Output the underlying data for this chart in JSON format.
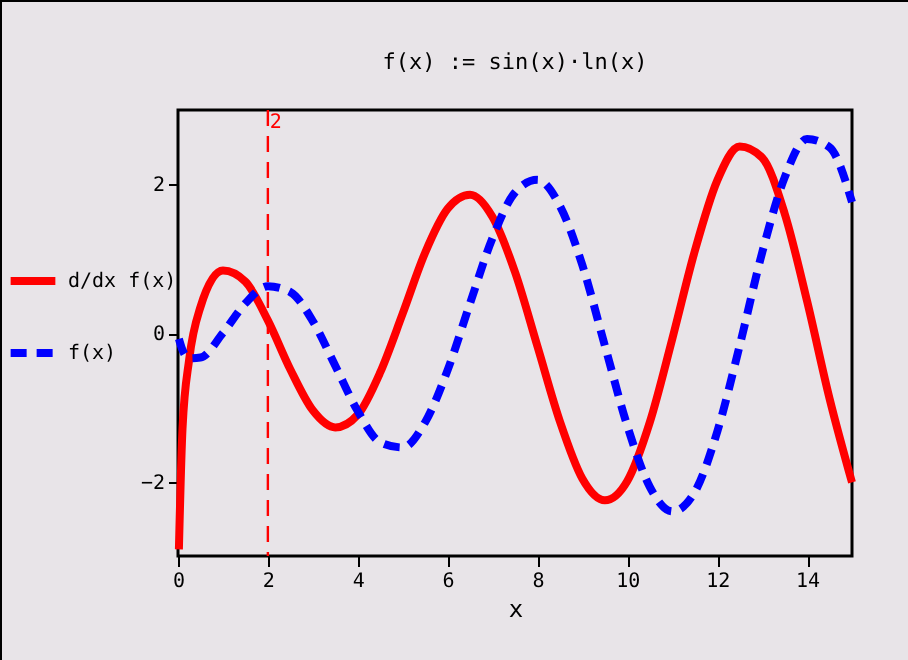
{
  "chart_data": {
    "type": "line",
    "title": "f(x) := sin(x)·ln(x)",
    "xlabel": "x",
    "x": [
      0.02,
      0.1,
      0.25,
      0.5,
      1,
      1.5,
      2,
      2.5,
      3,
      3.5,
      4,
      4.5,
      5,
      5.5,
      6,
      6.5,
      7,
      7.5,
      8,
      8.5,
      9,
      9.5,
      10,
      10.5,
      11,
      11.5,
      12,
      12.5,
      13,
      13.5,
      14,
      14.5,
      15
    ],
    "series": [
      {
        "name": "d/dx f(x)",
        "color": "#ff0000",
        "line_style": "solid",
        "values": [
          -2.91,
          -1.29,
          -0.35,
          0.35,
          0.84,
          0.69,
          0.17,
          -0.49,
          -1.04,
          -1.27,
          -1.1,
          -0.53,
          0.26,
          1.08,
          1.67,
          1.86,
          1.56,
          0.82,
          -0.18,
          -1.19,
          -1.96,
          -2.25,
          -1.99,
          -1.2,
          -0.08,
          1.1,
          2.05,
          2.51,
          2.36,
          1.61,
          0.43,
          -0.88,
          -2.01
        ]
      },
      {
        "name": "f(x)",
        "color": "#0000ff",
        "line_style": "dashed",
        "values": [
          -0.08,
          -0.23,
          -0.34,
          -0.33,
          0,
          0.4,
          0.63,
          0.55,
          0.16,
          -0.44,
          -1.05,
          -1.47,
          -1.54,
          -1.2,
          -0.5,
          0.4,
          1.28,
          1.89,
          2.06,
          1.71,
          0.91,
          -0.17,
          -1.25,
          -2.07,
          -2.4,
          -2.14,
          -1.33,
          -0.17,
          1.08,
          2.09,
          2.61,
          2.5,
          1.76
        ]
      }
    ],
    "xlim": [
      0,
      15
    ],
    "xticks": [
      0,
      2,
      4,
      6,
      8,
      10,
      12,
      14
    ],
    "ylim": [
      -3,
      3
    ],
    "yticks": [
      -2,
      0,
      2
    ],
    "ref_lines": [
      {
        "axis": "x",
        "value": 2,
        "label": "2",
        "color": "#ff0000",
        "line_style": "dashed"
      }
    ],
    "grid": false,
    "legend": "left",
    "marker": "none"
  }
}
